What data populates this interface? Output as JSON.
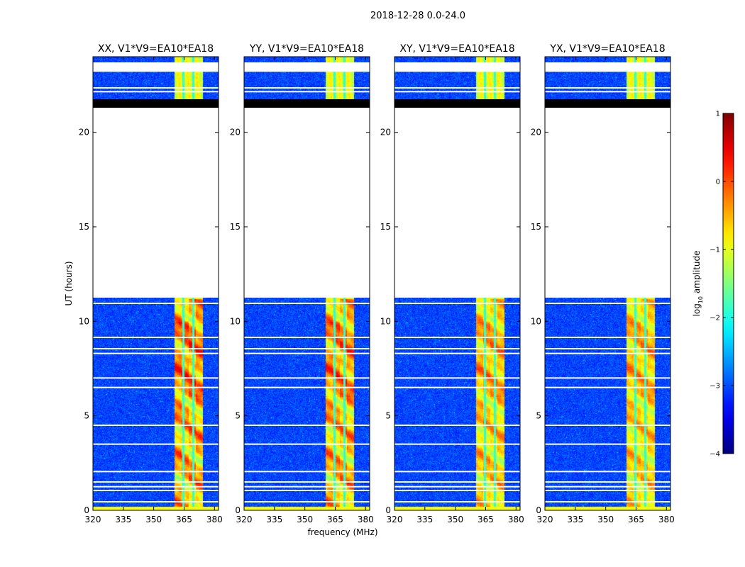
{
  "chart_data": {
    "type": "heatmap",
    "title": "2018-12-28 0.0-24.0",
    "xlabel": "frequency (MHz)",
    "ylabel": "UT (hours)",
    "xlim": [
      320,
      382
    ],
    "ylim": [
      0,
      24
    ],
    "x_ticks": [
      320,
      335,
      350,
      365,
      380
    ],
    "x_tick_labels": [
      "320",
      "335",
      "350",
      "365",
      "380"
    ],
    "y_ticks": [
      0,
      5,
      10,
      15,
      20
    ],
    "y_tick_labels": [
      "0",
      "5",
      "10",
      "15",
      "20"
    ],
    "panels": [
      {
        "title": "XX, V1*V9=EA10*EA18",
        "polarization": "XX",
        "rfi_intensity": 1.0
      },
      {
        "title": "YY, V1*V9=EA10*EA18",
        "polarization": "YY",
        "rfi_intensity": 0.95
      },
      {
        "title": "XY, V1*V9=EA10*EA18",
        "polarization": "XY",
        "rfi_intensity": 0.75
      },
      {
        "title": "YX, V1*V9=EA10*EA18",
        "polarization": "YX",
        "rfi_intensity": 0.7
      }
    ],
    "rfi_band_mhz": [
      360,
      374
    ],
    "rfi_channel_gaps_mhz": [
      364.5,
      369.5,
      374.5
    ],
    "no_data_ut": [
      [
        11.25,
        21.3
      ],
      [
        23.2,
        23.7
      ]
    ],
    "flagged_black_ut": [
      [
        21.3,
        21.75
      ]
    ],
    "flagged_white_ut": [
      0.45,
      1.05,
      1.25,
      1.5,
      2.05,
      3.5,
      4.5,
      6.5,
      7.0,
      8.3,
      8.55,
      9.15,
      10.95,
      22.15,
      22.35
    ],
    "colorbar": {
      "label": "log10 amplitude",
      "label_text": "log",
      "label_sub": "10",
      "label_rest": " amplitude",
      "vmin": -4,
      "vmax": 1,
      "ticks": [
        -4,
        -3,
        -2,
        -1,
        0,
        1
      ],
      "tick_labels": [
        "−4",
        "−3",
        "−2",
        "−1",
        "0",
        "1"
      ],
      "colormap": "jet"
    }
  }
}
